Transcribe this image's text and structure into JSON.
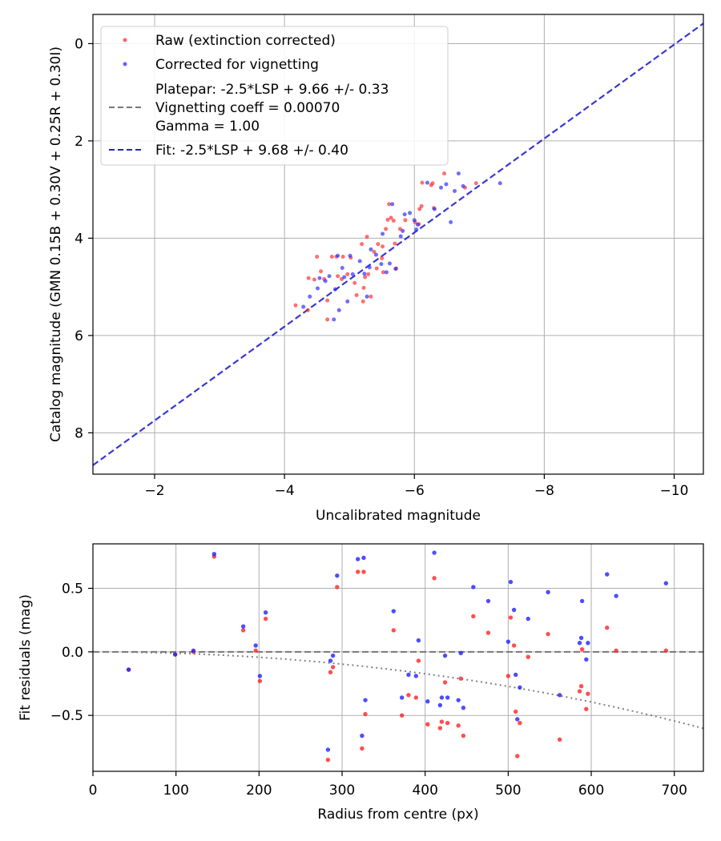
{
  "colors": {
    "raw": "#ff2222",
    "corrected": "#2020ff",
    "fit": "#2222cc",
    "platepar": "#777777",
    "curve": "#808080"
  },
  "chart_data": [
    {
      "type": "scatter",
      "xlabel": "Uncalibrated magnitude",
      "ylabel": "Catalog magnitude (GMN 0.15B + 0.30V + 0.25R + 0.30I)",
      "xlim": [
        -1.05,
        -10.45
      ],
      "ylim": [
        -0.6,
        8.85
      ],
      "x_ticks": [
        -2,
        -4,
        -6,
        -8,
        -10
      ],
      "x_tick_labels": [
        "−2",
        "−4",
        "−6",
        "−8",
        "−10"
      ],
      "y_ticks": [
        0,
        2,
        4,
        6,
        8
      ],
      "y_tick_labels": [
        "0",
        "2",
        "4",
        "6",
        "8"
      ],
      "grid": true,
      "legend_position": "top-left",
      "legend": [
        {
          "label": "Raw (extinction corrected)",
          "kind": "marker",
          "color_key": "raw"
        },
        {
          "label": "Corrected for vignetting",
          "kind": "marker",
          "color_key": "corrected"
        },
        {
          "label_lines": [
            "Platepar: -2.5*LSP + 9.66 +/- 0.33",
            "Vignetting coeff = 0.00070",
            "Gamma = 1.00"
          ],
          "kind": "dash",
          "color_key": "platepar"
        },
        {
          "label": "Fit: -2.5*LSP + 9.68 +/- 0.40",
          "kind": "dash",
          "color_key": "fit"
        }
      ],
      "fit_line": {
        "slope": 0.966,
        "intercept": 9.68
      },
      "series": [
        {
          "name": "Raw (extinction corrected)",
          "color_key": "raw",
          "points": [
            [
              -4.17,
              5.38
            ],
            [
              -4.36,
              5.48
            ],
            [
              -4.37,
              4.82
            ],
            [
              -4.46,
              4.85
            ],
            [
              -4.5,
              4.38
            ],
            [
              -4.56,
              4.68
            ],
            [
              -4.61,
              4.84
            ],
            [
              -4.66,
              5.67
            ],
            [
              -4.66,
              5.28
            ],
            [
              -4.73,
              4.38
            ],
            [
              -4.8,
              4.38
            ],
            [
              -4.82,
              4.78
            ],
            [
              -4.88,
              4.84
            ],
            [
              -4.9,
              4.38
            ],
            [
              -4.97,
              4.74
            ],
            [
              -5.02,
              4.4
            ],
            [
              -5.08,
              4.92
            ],
            [
              -5.11,
              5.17
            ],
            [
              -5.19,
              4.12
            ],
            [
              -5.21,
              5.3
            ],
            [
              -5.22,
              5.02
            ],
            [
              -5.24,
              4.8
            ],
            [
              -5.27,
              3.97
            ],
            [
              -5.29,
              4.74
            ],
            [
              -5.33,
              5.2
            ],
            [
              -5.38,
              4.28
            ],
            [
              -5.42,
              4.62
            ],
            [
              -5.44,
              4.12
            ],
            [
              -5.5,
              4.41
            ],
            [
              -5.51,
              4.17
            ],
            [
              -5.52,
              4.7
            ],
            [
              -5.56,
              3.81
            ],
            [
              -5.59,
              3.62
            ],
            [
              -5.61,
              3.3
            ],
            [
              -5.64,
              3.58
            ],
            [
              -5.68,
              3.64
            ],
            [
              -5.7,
              4.11
            ],
            [
              -5.72,
              4.62
            ],
            [
              -5.78,
              3.81
            ],
            [
              -5.86,
              3.63
            ],
            [
              -6.01,
              3.67
            ],
            [
              -6.07,
              3.71
            ],
            [
              -6.08,
              3.4
            ],
            [
              -6.11,
              3.34
            ],
            [
              -6.12,
              2.86
            ],
            [
              -6.26,
              2.91
            ],
            [
              -6.28,
              2.87
            ],
            [
              -6.3,
              3.38
            ],
            [
              -6.46,
              2.67
            ],
            [
              -6.78,
              2.96
            ],
            [
              -6.95,
              2.87
            ]
          ]
        },
        {
          "name": "Corrected for vignetting",
          "color_key": "corrected",
          "points": [
            [
              -4.29,
              5.41
            ],
            [
              -4.39,
              5.2
            ],
            [
              -4.51,
              5.03
            ],
            [
              -4.54,
              4.82
            ],
            [
              -4.63,
              4.88
            ],
            [
              -4.69,
              4.78
            ],
            [
              -4.76,
              5.67
            ],
            [
              -4.78,
              5.05
            ],
            [
              -4.82,
              4.36
            ],
            [
              -4.84,
              5.48
            ],
            [
              -4.89,
              4.61
            ],
            [
              -4.92,
              4.8
            ],
            [
              -4.97,
              5.3
            ],
            [
              -5.01,
              4.36
            ],
            [
              -5.05,
              4.74
            ],
            [
              -5.16,
              4.47
            ],
            [
              -5.23,
              4.73
            ],
            [
              -5.27,
              5.2
            ],
            [
              -5.31,
              4.6
            ],
            [
              -5.33,
              4.23
            ],
            [
              -5.41,
              4.34
            ],
            [
              -5.49,
              4.53
            ],
            [
              -5.51,
              3.91
            ],
            [
              -5.57,
              4.7
            ],
            [
              -5.62,
              4.52
            ],
            [
              -5.66,
              3.3
            ],
            [
              -5.71,
              4.63
            ],
            [
              -5.79,
              3.96
            ],
            [
              -5.82,
              3.85
            ],
            [
              -5.85,
              3.51
            ],
            [
              -5.93,
              3.48
            ],
            [
              -6.0,
              3.63
            ],
            [
              -6.03,
              3.82
            ],
            [
              -6.05,
              3.72
            ],
            [
              -6.2,
              2.86
            ],
            [
              -6.31,
              3.4
            ],
            [
              -6.41,
              2.96
            ],
            [
              -6.49,
              2.89
            ],
            [
              -6.56,
              3.67
            ],
            [
              -6.62,
              3.03
            ],
            [
              -6.68,
              2.67
            ],
            [
              -6.75,
              2.93
            ],
            [
              -7.32,
              2.87
            ]
          ]
        }
      ]
    },
    {
      "type": "scatter",
      "xlabel": "Radius from centre (px)",
      "ylabel": "Fit residuals (mag)",
      "xlim": [
        0,
        735
      ],
      "ylim": [
        -0.94,
        0.85
      ],
      "x_ticks": [
        0,
        100,
        200,
        300,
        400,
        500,
        600,
        700
      ],
      "x_tick_labels": [
        "0",
        "100",
        "200",
        "300",
        "400",
        "500",
        "600",
        "700"
      ],
      "y_ticks": [
        0.5,
        0.0,
        -0.5
      ],
      "y_tick_labels": [
        "0.5",
        "0.0",
        "−0.5"
      ],
      "grid": true,
      "zero_line": 0.0,
      "vignetting_curve": {
        "coeff": 0.0007,
        "formula": "y = -2.5*log10(cos(coeff*r)^4)*-1"
      },
      "series": [
        {
          "name": "Raw (extinction corrected)",
          "color_key": "raw",
          "points": [
            [
              43,
              -0.14
            ],
            [
              99,
              -0.02
            ],
            [
              121,
              0.0
            ],
            [
              146,
              0.75
            ],
            [
              181,
              0.17
            ],
            [
              196,
              0.01
            ],
            [
              201,
              -0.23
            ],
            [
              208,
              0.26
            ],
            [
              283,
              -0.85
            ],
            [
              286,
              -0.16
            ],
            [
              289,
              -0.12
            ],
            [
              294,
              0.51
            ],
            [
              319,
              0.63
            ],
            [
              324,
              -0.76
            ],
            [
              326,
              0.63
            ],
            [
              328,
              -0.49
            ],
            [
              362,
              0.17
            ],
            [
              372,
              -0.5
            ],
            [
              380,
              -0.34
            ],
            [
              389,
              -0.36
            ],
            [
              392,
              -0.07
            ],
            [
              403,
              -0.57
            ],
            [
              411,
              0.58
            ],
            [
              418,
              -0.6
            ],
            [
              420,
              -0.55
            ],
            [
              424,
              -0.24
            ],
            [
              427,
              -0.56
            ],
            [
              440,
              -0.58
            ],
            [
              443,
              -0.21
            ],
            [
              446,
              -0.66
            ],
            [
              458,
              0.28
            ],
            [
              476,
              0.15
            ],
            [
              500,
              -0.19
            ],
            [
              503,
              0.27
            ],
            [
              507,
              0.05
            ],
            [
              509,
              -0.47
            ],
            [
              511,
              -0.82
            ],
            [
              514,
              -0.56
            ],
            [
              524,
              -0.04
            ],
            [
              548,
              0.14
            ],
            [
              562,
              -0.69
            ],
            [
              586,
              -0.31
            ],
            [
              588,
              -0.27
            ],
            [
              589,
              0.02
            ],
            [
              594,
              -0.45
            ],
            [
              596,
              -0.33
            ],
            [
              619,
              0.19
            ],
            [
              630,
              0.01
            ],
            [
              690,
              0.01
            ]
          ]
        },
        {
          "name": "Corrected for vignetting",
          "color_key": "corrected",
          "points": [
            [
              43,
              -0.14
            ],
            [
              99,
              -0.02
            ],
            [
              121,
              0.01
            ],
            [
              146,
              0.77
            ],
            [
              181,
              0.2
            ],
            [
              196,
              0.05
            ],
            [
              201,
              -0.19
            ],
            [
              208,
              0.31
            ],
            [
              283,
              -0.77
            ],
            [
              286,
              -0.07
            ],
            [
              289,
              -0.03
            ],
            [
              294,
              0.6
            ],
            [
              319,
              0.73
            ],
            [
              324,
              -0.66
            ],
            [
              326,
              0.74
            ],
            [
              328,
              -0.38
            ],
            [
              362,
              0.32
            ],
            [
              372,
              -0.36
            ],
            [
              380,
              -0.18
            ],
            [
              389,
              -0.19
            ],
            [
              392,
              0.09
            ],
            [
              403,
              -0.39
            ],
            [
              411,
              0.78
            ],
            [
              418,
              -0.42
            ],
            [
              420,
              -0.36
            ],
            [
              424,
              -0.03
            ],
            [
              427,
              -0.36
            ],
            [
              440,
              -0.38
            ],
            [
              443,
              -0.01
            ],
            [
              446,
              -0.44
            ],
            [
              458,
              0.51
            ],
            [
              476,
              0.4
            ],
            [
              500,
              0.08
            ],
            [
              503,
              0.55
            ],
            [
              507,
              0.33
            ],
            [
              509,
              -0.18
            ],
            [
              511,
              -0.53
            ],
            [
              514,
              -0.28
            ],
            [
              524,
              0.26
            ],
            [
              548,
              0.47
            ],
            [
              562,
              -0.34
            ],
            [
              586,
              0.07
            ],
            [
              588,
              0.11
            ],
            [
              589,
              0.4
            ],
            [
              594,
              -0.06
            ],
            [
              596,
              0.07
            ],
            [
              619,
              0.61
            ],
            [
              630,
              0.44
            ],
            [
              690,
              0.54
            ]
          ]
        }
      ]
    }
  ]
}
